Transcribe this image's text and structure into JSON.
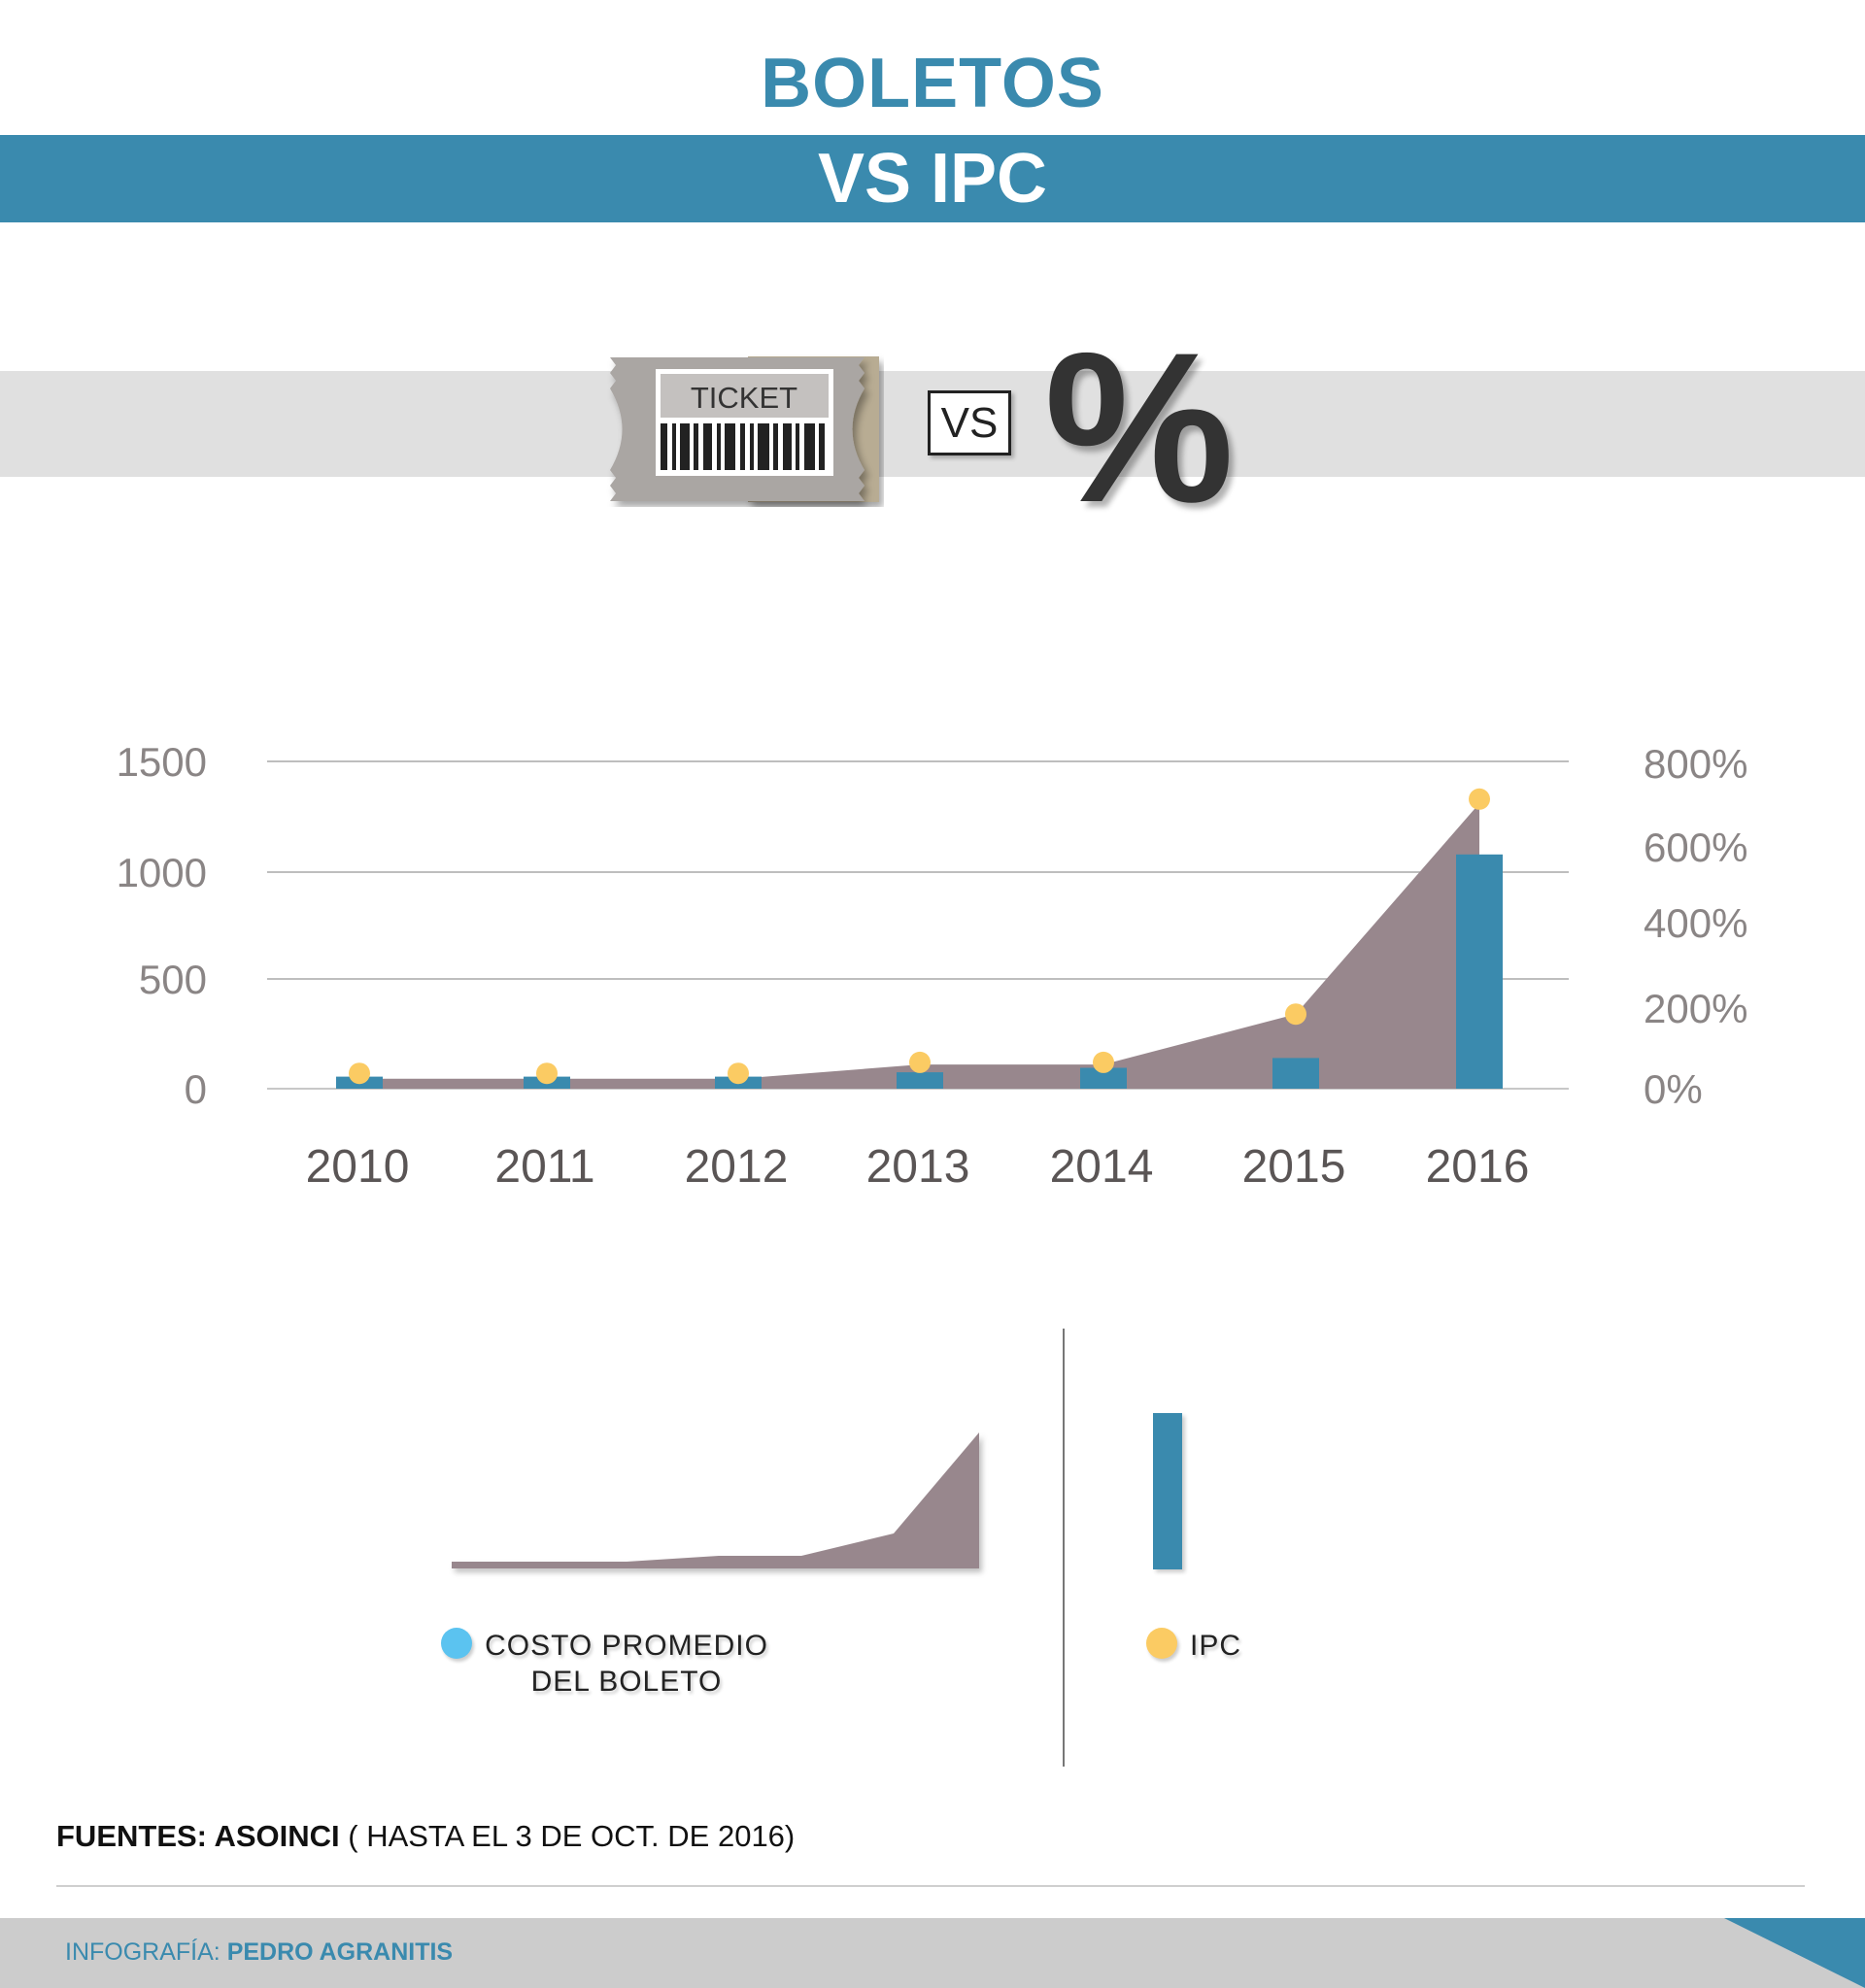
{
  "header": {
    "title": "BOLETOS",
    "subtitle": "VS IPC"
  },
  "icons": {
    "ticket": {
      "label": "TICKET",
      "name": "ticket-icon"
    },
    "vs_label": "VS",
    "percent": "%"
  },
  "colors": {
    "brand_blue": "#3a8aae",
    "area_mauve": "#98878d",
    "ipc_yellow": "#fbcb63",
    "legend_cyan": "#5bc3f0"
  },
  "chart_data": {
    "type": "bar",
    "categories": [
      "2010",
      "2011",
      "2012",
      "2013",
      "2014",
      "2015",
      "2016"
    ],
    "y_left": {
      "ticks": [
        "1500",
        "1000",
        "500",
        "0"
      ],
      "ylim": [
        0,
        1500
      ]
    },
    "y_right": {
      "ticks": [
        "800%",
        "600%",
        "400%",
        "200%",
        "0%"
      ],
      "ylim": [
        0,
        800
      ]
    },
    "grid": true,
    "series": [
      {
        "kind": "area",
        "axis": "left",
        "values": [
          45,
          45,
          45,
          110,
          110,
          340,
          1310
        ]
      },
      {
        "kind": "bar",
        "axis": "left",
        "values": [
          55,
          55,
          55,
          75,
          95,
          140,
          1080
        ]
      },
      {
        "kind": "point",
        "axis": "left",
        "values": [
          70,
          70,
          70,
          120,
          120,
          340,
          1330
        ]
      }
    ]
  },
  "legend": {
    "costo_label_line1": "COSTO PROMEDIO",
    "costo_label_line2": "DEL BOLETO",
    "ipc_label": "IPC"
  },
  "footer": {
    "sources_bold": "FUENTES: ASOINCI",
    "sources_rest": " ( HASTA EL 3 DE OCT. DE 2016)",
    "credit_prefix": "INFOGRAFÍA: ",
    "credit_name": "PEDRO AGRANITIS"
  }
}
